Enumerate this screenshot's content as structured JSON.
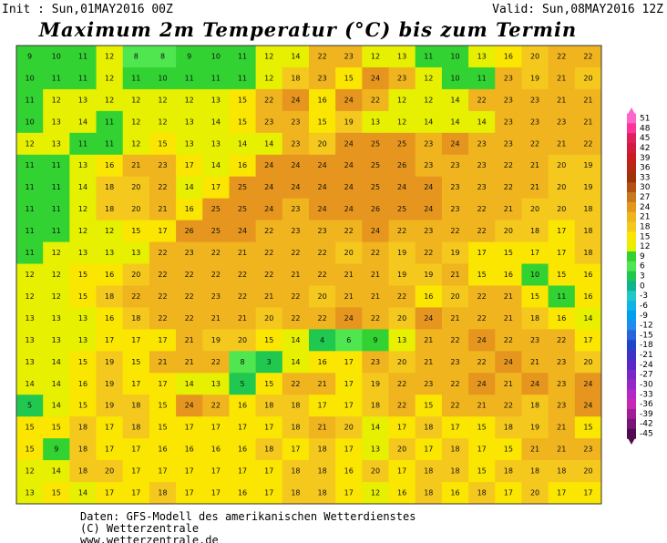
{
  "header": {
    "init": "Init : Sun,01MAY2016 00Z",
    "valid": "Valid: Sun,08MAY2016 12Z",
    "title": "Maximum 2m Temperatur (°C) bis zum Termin"
  },
  "map": {
    "rows": [
      [
        9,
        10,
        11,
        12,
        8,
        8,
        9,
        10,
        11,
        12,
        14,
        22,
        23,
        12,
        13,
        11,
        10,
        13,
        16,
        20,
        22,
        22
      ],
      [
        10,
        11,
        11,
        12,
        11,
        10,
        11,
        11,
        11,
        12,
        18,
        23,
        15,
        24,
        23,
        12,
        10,
        11,
        23,
        19,
        21,
        20
      ],
      [
        11,
        12,
        13,
        12,
        12,
        12,
        12,
        13,
        15,
        22,
        24,
        16,
        24,
        22,
        12,
        12,
        14,
        22,
        23,
        23,
        21,
        21
      ],
      [
        10,
        13,
        14,
        11,
        12,
        12,
        13,
        14,
        15,
        23,
        23,
        15,
        19,
        13,
        12,
        14,
        14,
        14,
        23,
        23,
        23,
        21
      ],
      [
        12,
        13,
        11,
        11,
        12,
        15,
        13,
        13,
        14,
        14,
        23,
        20,
        24,
        25,
        25,
        23,
        24,
        23,
        23,
        22,
        21,
        22
      ],
      [
        11,
        11,
        13,
        16,
        21,
        23,
        17,
        14,
        16,
        24,
        24,
        24,
        24,
        25,
        26,
        23,
        23,
        23,
        22,
        21,
        20,
        19
      ],
      [
        11,
        11,
        14,
        18,
        20,
        22,
        14,
        17,
        25,
        24,
        24,
        24,
        24,
        25,
        24,
        24,
        23,
        23,
        22,
        21,
        20,
        19
      ],
      [
        11,
        11,
        12,
        18,
        20,
        21,
        16,
        25,
        25,
        24,
        23,
        24,
        24,
        26,
        25,
        24,
        23,
        22,
        21,
        20,
        20,
        18
      ],
      [
        11,
        11,
        12,
        12,
        15,
        17,
        26,
        25,
        24,
        22,
        23,
        23,
        22,
        24,
        22,
        23,
        22,
        22,
        20,
        18,
        17,
        18
      ],
      [
        11,
        12,
        13,
        13,
        13,
        22,
        23,
        22,
        21,
        22,
        22,
        22,
        20,
        22,
        19,
        22,
        19,
        17,
        15,
        17,
        17,
        18
      ],
      [
        12,
        12,
        15,
        16,
        20,
        22,
        22,
        22,
        22,
        22,
        21,
        22,
        21,
        21,
        19,
        19,
        21,
        15,
        16,
        10,
        15,
        16
      ],
      [
        12,
        12,
        15,
        18,
        22,
        22,
        22,
        23,
        22,
        21,
        22,
        20,
        21,
        21,
        22,
        16,
        20,
        22,
        21,
        15,
        11,
        16
      ],
      [
        13,
        13,
        13,
        16,
        18,
        22,
        22,
        21,
        21,
        20,
        22,
        22,
        24,
        22,
        20,
        24,
        21,
        22,
        21,
        18,
        16,
        14
      ],
      [
        13,
        13,
        13,
        17,
        17,
        17,
        21,
        19,
        20,
        15,
        14,
        4,
        6,
        9,
        13,
        21,
        22,
        24,
        22,
        23,
        22,
        17
      ],
      [
        13,
        14,
        15,
        19,
        15,
        21,
        21,
        22,
        8,
        3,
        14,
        16,
        17,
        23,
        20,
        21,
        23,
        22,
        24,
        21,
        23,
        20
      ],
      [
        14,
        14,
        16,
        19,
        17,
        17,
        14,
        13,
        5,
        15,
        22,
        21,
        17,
        19,
        22,
        23,
        22,
        24,
        21,
        24,
        23,
        24
      ],
      [
        5,
        14,
        15,
        19,
        18,
        15,
        24,
        22,
        16,
        18,
        18,
        17,
        17,
        18,
        22,
        15,
        22,
        21,
        22,
        18,
        23,
        24
      ],
      [
        15,
        15,
        18,
        17,
        18,
        15,
        17,
        17,
        17,
        17,
        18,
        21,
        20,
        14,
        17,
        18,
        17,
        15,
        18,
        19,
        21,
        15
      ],
      [
        15,
        9,
        18,
        17,
        17,
        16,
        16,
        16,
        16,
        18,
        17,
        18,
        17,
        13,
        20,
        17,
        18,
        17,
        15,
        21,
        21,
        23
      ],
      [
        12,
        14,
        18,
        20,
        17,
        17,
        17,
        17,
        17,
        17,
        18,
        18,
        16,
        20,
        17,
        18,
        18,
        15,
        18,
        18,
        18,
        20
      ],
      [
        13,
        15,
        14,
        17,
        17,
        18,
        17,
        17,
        16,
        17,
        18,
        18,
        17,
        12,
        16,
        18,
        16,
        18,
        17,
        20,
        17,
        17
      ]
    ]
  },
  "legend": {
    "labels": [
      51,
      48,
      45,
      42,
      39,
      36,
      33,
      30,
      27,
      24,
      21,
      18,
      15,
      12,
      9,
      6,
      3,
      0,
      -3,
      -6,
      -9,
      -12,
      -15,
      -18,
      -21,
      -24,
      -27,
      -30,
      -33,
      -36,
      -39,
      -42,
      -45
    ],
    "colors": [
      "#ff66cc",
      "#ff3399",
      "#e0205a",
      "#d01c40",
      "#c81e1e",
      "#b42814",
      "#a0320a",
      "#b45014",
      "#c8781e",
      "#e6961e",
      "#f0b41e",
      "#f5c81e",
      "#fae600",
      "#e6f000",
      "#32d232",
      "#50e650",
      "#20c850",
      "#10b48c",
      "#20c8c8",
      "#10b4e6",
      "#00a0f0",
      "#1e8cf0",
      "#2864dc",
      "#1e46c8",
      "#3c32c8",
      "#5a28c8",
      "#7828c8",
      "#9628c8",
      "#b428c8",
      "#c828b4",
      "#a01e96",
      "#781478",
      "#500a50"
    ]
  },
  "footer": {
    "lines": [
      "Daten: GFS-Modell des amerikanischen Wetterdienstes",
      "(C) Wetterzentrale",
      "www.wetterzentrale.de"
    ]
  }
}
